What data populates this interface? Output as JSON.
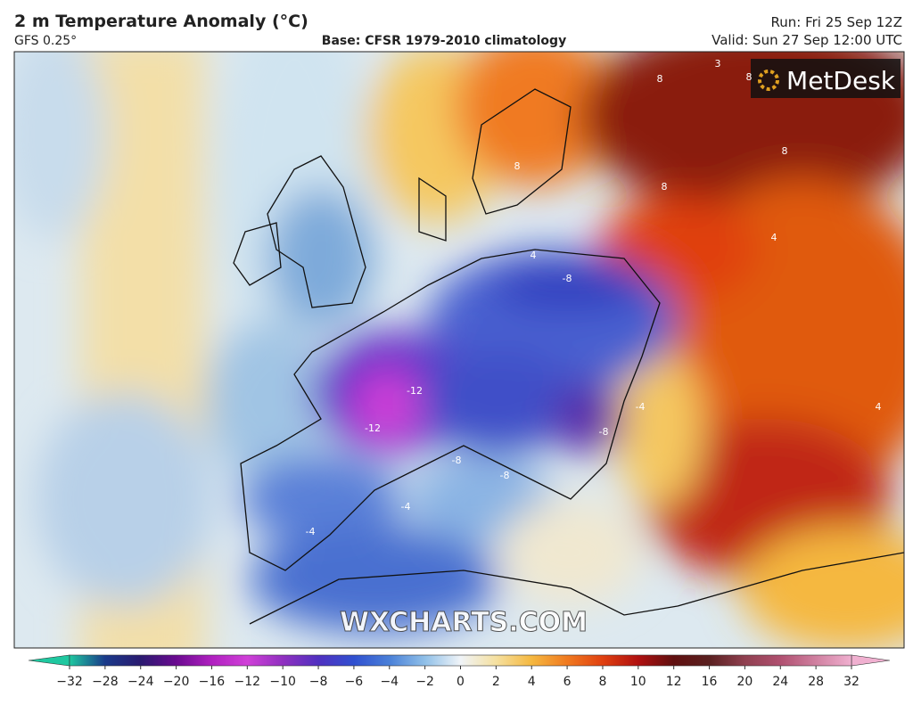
{
  "header": {
    "title": "2 m Temperature Anomaly (°C)",
    "model": "GFS 0.25°",
    "base": "Base: CFSR 1979-2010 climatology",
    "run": "Run: Fri 25 Sep 12Z",
    "valid": "Valid: Sun 27 Sep 12:00 UTC"
  },
  "logo": "MetDesk",
  "watermark": "WXCHARTS.COM",
  "map": {
    "contour_labels": [
      "-12",
      "-12",
      "-8",
      "-8",
      "-8",
      "-8",
      "-4",
      "-4",
      "-4",
      "4",
      "4",
      "4",
      "8",
      "8",
      "8",
      "8",
      "8",
      "3"
    ]
  },
  "colorbar": {
    "ticks": [
      {
        "value": -32,
        "label": "−32"
      },
      {
        "value": -28,
        "label": "−28"
      },
      {
        "value": -24,
        "label": "−24"
      },
      {
        "value": -20,
        "label": "−20"
      },
      {
        "value": -16,
        "label": "−16"
      },
      {
        "value": -12,
        "label": "−12"
      },
      {
        "value": -10,
        "label": "−10"
      },
      {
        "value": -8,
        "label": "−8"
      },
      {
        "value": -6,
        "label": "−6"
      },
      {
        "value": -4,
        "label": "−4"
      },
      {
        "value": -2,
        "label": "−2"
      },
      0,
      2,
      4,
      6,
      8,
      10,
      12,
      16,
      20,
      24,
      28,
      32
    ],
    "colors": [
      "#1fc8a0",
      "#1a3a8a",
      "#2a1a70",
      "#6a0a90",
      "#b020c0",
      "#d040d8",
      "#9030c0",
      "#5030c0",
      "#3050d0",
      "#4a80d8",
      "#90c0e8",
      "#f0f4f8",
      "#f5e0a0",
      "#f5b840",
      "#f07a20",
      "#e04010",
      "#b01010",
      "#601010",
      "#5a2020",
      "#904050",
      "#b05070",
      "#d080a0",
      "#f0b0d0"
    ]
  }
}
